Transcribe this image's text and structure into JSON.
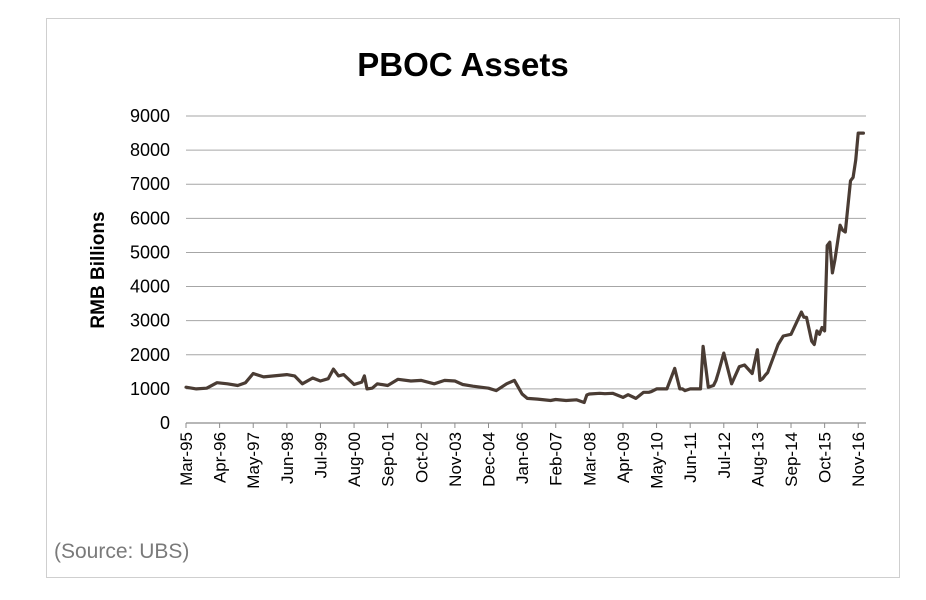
{
  "chart_data": {
    "type": "line",
    "title": "PBOC Assets",
    "xlabel": "",
    "ylabel": "RMB Billions",
    "ylim": [
      0,
      9000
    ],
    "yticks": [
      0,
      1000,
      2000,
      3000,
      4000,
      5000,
      6000,
      7000,
      8000,
      9000
    ],
    "ytick_labels": [
      "0",
      "1000",
      "2000",
      "3000",
      "4000",
      "5000",
      "6000",
      "7000",
      "8000",
      "9000"
    ],
    "xtick_labels": [
      "Mar-95",
      "Apr-96",
      "May-97",
      "Jun-98",
      "Jul-99",
      "Aug-00",
      "Sep-01",
      "Oct-02",
      "Nov-03",
      "Dec-04",
      "Jan-06",
      "Feb-07",
      "Mar-08",
      "Apr-09",
      "May-10",
      "Jun-11",
      "Jul-12",
      "Aug-13",
      "Sep-14",
      "Oct-15",
      "Nov-16"
    ],
    "grid": "horizontal",
    "line_color": "#4a3c34",
    "series": [
      {
        "x": [
          "Mar-95",
          "Jul-95",
          "Nov-95",
          "Mar-96",
          "Jul-96",
          "Nov-96",
          "Feb-97",
          "May-97",
          "Sep-97",
          "Jan-98",
          "Jun-98",
          "Sep-98",
          "Dec-98",
          "Apr-99",
          "Jul-99",
          "Oct-99",
          "Dec-99",
          "Feb-00",
          "Apr-00",
          "Aug-00",
          "Nov-00",
          "Dec-00",
          "Jan-01",
          "Mar-01",
          "May-01",
          "Sep-01",
          "Jan-02",
          "Jun-02",
          "Oct-02",
          "Mar-03",
          "Jul-03",
          "Nov-03",
          "Feb-04",
          "Jun-04",
          "Dec-04",
          "Mar-05",
          "Jul-05",
          "Oct-05",
          "Jan-06",
          "Mar-06",
          "Jul-06",
          "Dec-06",
          "Feb-07",
          "Jun-07",
          "Oct-07",
          "Jan-08",
          "Feb-08",
          "Mar-08",
          "Jul-08",
          "Sep-08",
          "Dec-08",
          "Apr-09",
          "Jun-09",
          "Sep-09",
          "Dec-09",
          "Feb-10",
          "Mar-10",
          "May-10",
          "Sep-10",
          "Dec-10",
          "Feb-11",
          "Mar-11",
          "Apr-11",
          "Jun-11",
          "Oct-11",
          "Nov-11",
          "Jan-12",
          "Mar-12",
          "Apr-12",
          "May-12",
          "Jul-12",
          "Oct-12",
          "Jan-13",
          "Mar-13",
          "Jun-13",
          "Aug-13",
          "Sep-13",
          "Oct-13",
          "Nov-13",
          "Dec-13",
          "Apr-14",
          "Jun-14",
          "Sep-14",
          "Jan-15",
          "Feb-15",
          "Mar-15",
          "May-15",
          "Jun-15",
          "Jul-15",
          "Aug-15",
          "Sep-15",
          "Oct-15",
          "Nov-15",
          "Dec-15",
          "Jan-16",
          "Feb-16",
          "Apr-16",
          "May-16",
          "Jun-16",
          "Aug-16",
          "Sep-16",
          "Oct-16",
          "Nov-16",
          "Dec-16",
          "Jan-17"
        ],
        "values": [
          1050,
          1000,
          1020,
          1180,
          1150,
          1100,
          1180,
          1450,
          1350,
          1380,
          1420,
          1380,
          1150,
          1320,
          1230,
          1300,
          1580,
          1380,
          1420,
          1130,
          1200,
          1380,
          1000,
          1020,
          1150,
          1100,
          1280,
          1230,
          1250,
          1150,
          1250,
          1230,
          1130,
          1080,
          1020,
          950,
          1150,
          1250,
          850,
          720,
          700,
          660,
          690,
          660,
          680,
          600,
          820,
          850,
          870,
          860,
          870,
          750,
          830,
          720,
          900,
          900,
          920,
          1000,
          1000,
          1600,
          1000,
          1000,
          950,
          1000,
          1000,
          2250,
          1050,
          1100,
          1250,
          1500,
          2050,
          1150,
          1650,
          1700,
          1450,
          2150,
          1250,
          1300,
          1400,
          1480,
          2300,
          2550,
          2600,
          3250,
          3100,
          3100,
          2400,
          2300,
          2700,
          2600,
          2800,
          2700,
          5200,
          5300,
          4400,
          4800,
          5800,
          5650,
          5600,
          7100,
          7200,
          7700,
          8500,
          8500,
          8500
        ]
      }
    ]
  },
  "source_note": "(Source: UBS)"
}
